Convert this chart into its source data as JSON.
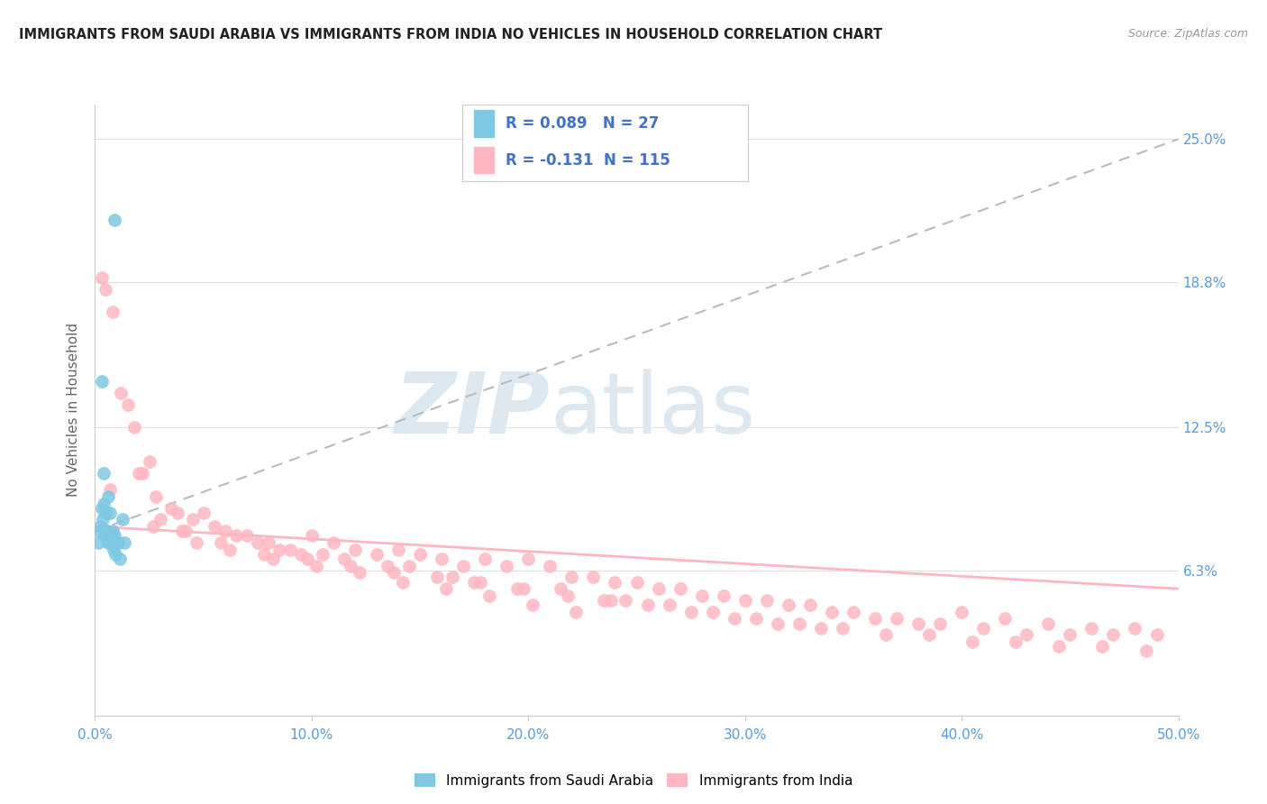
{
  "title": "IMMIGRANTS FROM SAUDI ARABIA VS IMMIGRANTS FROM INDIA NO VEHICLES IN HOUSEHOLD CORRELATION CHART",
  "source": "Source: ZipAtlas.com",
  "ylabel": "No Vehicles in Household",
  "watermark_zip": "ZIP",
  "watermark_atlas": "atlas",
  "xlim": [
    0.0,
    50.0
  ],
  "ylim": [
    0.0,
    26.5
  ],
  "xticks": [
    0.0,
    10.0,
    20.0,
    30.0,
    40.0,
    50.0
  ],
  "xtick_labels": [
    "0.0%",
    "10.0%",
    "20.0%",
    "30.0%",
    "40.0%",
    "50.0%"
  ],
  "ytick_values": [
    6.3,
    12.5,
    18.8,
    25.0
  ],
  "ytick_labels": [
    "6.3%",
    "12.5%",
    "18.8%",
    "25.0%"
  ],
  "saudi_color": "#7ec8e3",
  "india_color": "#ffb6c1",
  "saudi_R": 0.089,
  "saudi_N": 27,
  "india_R": -0.131,
  "india_N": 115,
  "legend_color": "#4472c4",
  "saudi_trend_color": "#bbbbbb",
  "india_trend_color": "#ffb6c1",
  "background_color": "#ffffff",
  "saudi_scatter_x": [
    0.2,
    0.9,
    0.4,
    0.3,
    0.5,
    0.6,
    0.15,
    0.25,
    0.35,
    0.45,
    0.55,
    0.65,
    0.75,
    0.85,
    0.95,
    1.05,
    1.15,
    1.25,
    1.35,
    0.3,
    0.4,
    0.5,
    0.6,
    0.7,
    0.8,
    0.9,
    1.0
  ],
  "saudi_scatter_y": [
    8.0,
    21.5,
    9.2,
    14.5,
    8.8,
    9.5,
    7.5,
    8.2,
    8.5,
    7.8,
    8.0,
    7.5,
    7.8,
    7.2,
    7.0,
    7.5,
    6.8,
    8.5,
    7.5,
    9.0,
    10.5,
    8.0,
    7.5,
    8.8,
    8.0,
    7.8,
    7.5
  ],
  "india_scatter_x": [
    0.3,
    1.5,
    2.5,
    3.5,
    0.8,
    1.2,
    2.0,
    4.5,
    5.0,
    6.0,
    3.0,
    7.0,
    8.0,
    2.8,
    9.0,
    4.0,
    10.0,
    11.0,
    12.0,
    5.5,
    13.0,
    6.5,
    14.0,
    15.0,
    7.5,
    16.0,
    17.0,
    18.0,
    8.5,
    19.0,
    20.0,
    9.5,
    21.0,
    22.0,
    10.5,
    23.0,
    24.0,
    11.5,
    25.0,
    26.0,
    13.5,
    27.0,
    28.0,
    14.5,
    29.0,
    30.0,
    16.5,
    31.0,
    32.0,
    17.5,
    33.0,
    34.0,
    19.5,
    35.0,
    36.0,
    21.5,
    37.0,
    38.0,
    23.5,
    39.0,
    40.0,
    25.5,
    41.0,
    42.0,
    27.5,
    43.0,
    44.0,
    29.5,
    45.0,
    46.0,
    31.5,
    47.0,
    48.0,
    33.5,
    49.0,
    1.8,
    3.8,
    5.8,
    7.8,
    9.8,
    11.8,
    13.8,
    15.8,
    17.8,
    19.8,
    21.8,
    23.8,
    0.5,
    2.2,
    4.2,
    6.2,
    8.2,
    10.2,
    12.2,
    14.2,
    16.2,
    18.2,
    20.2,
    22.2,
    24.5,
    26.5,
    28.5,
    30.5,
    32.5,
    34.5,
    36.5,
    38.5,
    40.5,
    42.5,
    44.5,
    46.5,
    48.5,
    0.7,
    2.7,
    4.7
  ],
  "india_scatter_y": [
    19.0,
    13.5,
    11.0,
    9.0,
    17.5,
    14.0,
    10.5,
    8.5,
    8.8,
    8.0,
    8.5,
    7.8,
    7.5,
    9.5,
    7.2,
    8.0,
    7.8,
    7.5,
    7.2,
    8.2,
    7.0,
    7.8,
    7.2,
    7.0,
    7.5,
    6.8,
    6.5,
    6.8,
    7.2,
    6.5,
    6.8,
    7.0,
    6.5,
    6.0,
    7.0,
    6.0,
    5.8,
    6.8,
    5.8,
    5.5,
    6.5,
    5.5,
    5.2,
    6.5,
    5.2,
    5.0,
    6.0,
    5.0,
    4.8,
    5.8,
    4.8,
    4.5,
    5.5,
    4.5,
    4.2,
    5.5,
    4.2,
    4.0,
    5.0,
    4.0,
    4.5,
    4.8,
    3.8,
    4.2,
    4.5,
    3.5,
    4.0,
    4.2,
    3.5,
    3.8,
    4.0,
    3.5,
    3.8,
    3.8,
    3.5,
    12.5,
    8.8,
    7.5,
    7.0,
    6.8,
    6.5,
    6.2,
    6.0,
    5.8,
    5.5,
    5.2,
    5.0,
    18.5,
    10.5,
    8.0,
    7.2,
    6.8,
    6.5,
    6.2,
    5.8,
    5.5,
    5.2,
    4.8,
    4.5,
    5.0,
    4.8,
    4.5,
    4.2,
    4.0,
    3.8,
    3.5,
    3.5,
    3.2,
    3.2,
    3.0,
    3.0,
    2.8,
    9.8,
    8.2,
    7.5
  ],
  "saudi_trend_start_y": 8.0,
  "saudi_trend_end_y": 25.0,
  "india_trend_start_y": 8.2,
  "india_trend_end_y": 5.5
}
